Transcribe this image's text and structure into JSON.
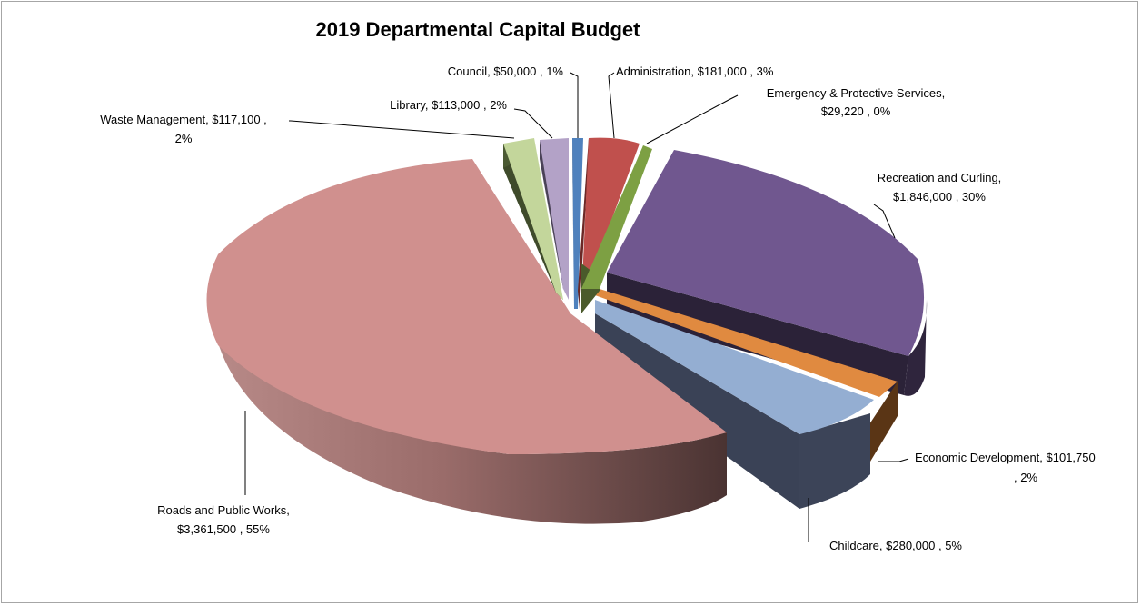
{
  "chart_data": {
    "type": "pie",
    "title": "2019 Departmental Capital Budget",
    "slices": [
      {
        "name": "Council",
        "value": 50000,
        "value_label": "$50,000",
        "percent_label": "1%",
        "color": "#4f81bd"
      },
      {
        "name": "Administration",
        "value": 181000,
        "value_label": "$181,000",
        "percent_label": "3%",
        "color": "#c0504d"
      },
      {
        "name": "Emergency & Protective Services",
        "value": 29220,
        "value_label": "$29,220",
        "percent_label": "0%",
        "color": "#9bbb59"
      },
      {
        "name": "Recreation and Curling",
        "value": 1846000,
        "value_label": "$1,846,000",
        "percent_label": "30%",
        "color": "#8064a2"
      },
      {
        "name": "Economic Development",
        "value": 101750,
        "value_label": "$101,750",
        "percent_label": "2%",
        "color": "#f79646"
      },
      {
        "name": "Childcare",
        "value": 280000,
        "value_label": "$280,000",
        "percent_label": "5%",
        "color": "#95b3d7"
      },
      {
        "name": "Roads and Public Works",
        "value": 3361500,
        "value_label": "$3,361,500",
        "percent_label": "55%",
        "color": "#d99694"
      },
      {
        "name": "Waste Management",
        "value": 117100,
        "value_label": "$117,100",
        "percent_label": "2%",
        "color": "#c3d69b"
      },
      {
        "name": "Library",
        "value": 113000,
        "value_label": "$113,000",
        "percent_label": "2%",
        "color": "#b3a2c7"
      }
    ],
    "labels": {
      "council": "Council,  $50,000 , 1%",
      "administration": "Administration,  $181,000 , 3%",
      "emergency_line1": "Emergency & Protective Services,",
      "emergency_line2": "$29,220 , 0%",
      "recreation_line1": "Recreation and Curling,",
      "recreation_line2": "$1,846,000 , 30%",
      "econdev_line1": "Economic Development,  $101,750",
      "econdev_line2": ", 2%",
      "childcare": "Childcare,  $280,000 , 5%",
      "roads_line1": "Roads and Public Works,",
      "roads_line2": "$3,361,500 , 55%",
      "waste_line1": "Waste Management,  $117,100 ,",
      "waste_line2": "2%",
      "library": "Library,  $113,000 , 2%"
    },
    "legend": "none",
    "style": "3d-exploded"
  }
}
